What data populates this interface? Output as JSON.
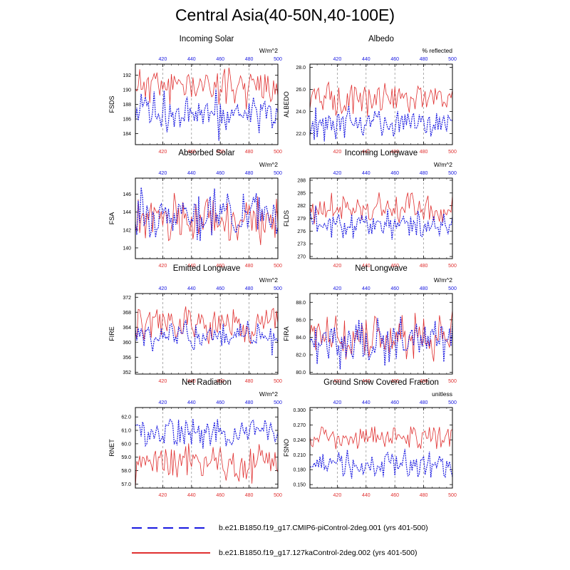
{
  "title": "Central Asia(40-50N,40-100E)",
  "colors": {
    "control": "#e03030",
    "cmip6": "#1818e0",
    "grid": "#8a8a8a"
  },
  "legend": [
    {
      "label": "b.e21.B1850.f19_g17.CMIP6-piControl-2deg.001 (yrs 401-500)",
      "color": "#1818e0",
      "style": "dashed"
    },
    {
      "label": "b.e21.B1850.f19_g17.127kaControl-2deg.002 (yrs 401-500)",
      "color": "#e03030",
      "style": "solid"
    }
  ],
  "chart_data": [
    {
      "type": "line",
      "title": "Incoming Solar",
      "ylabel": "FSDS",
      "units": "W/m^2",
      "xlim": [
        401,
        500
      ],
      "ylim": [
        182.5,
        193.5
      ],
      "yticks": [
        "184",
        "186",
        "188",
        "190",
        "192"
      ],
      "xticks": [
        420,
        440,
        460,
        480,
        500
      ],
      "series": [
        {
          "name": "127kaControl",
          "mean": 190.6,
          "amp": 1.1,
          "seed": 11
        },
        {
          "name": "CMIP6-piControl",
          "mean": 186.9,
          "amp": 1.3,
          "seed": 12
        }
      ]
    },
    {
      "type": "line",
      "title": "Albedo",
      "ylabel": "ALBEDO",
      "units": "% reflected",
      "xlim": [
        401,
        500
      ],
      "ylim": [
        21.0,
        28.3
      ],
      "yticks": [
        "22.0",
        "24.0",
        "26.0",
        "28.0"
      ],
      "xticks": [
        420,
        440,
        460,
        480,
        500
      ],
      "series": [
        {
          "name": "127kaControl",
          "mean": 25.2,
          "amp": 0.6,
          "seed": 21
        },
        {
          "name": "CMIP6-piControl",
          "mean": 23.0,
          "amp": 0.6,
          "seed": 22
        }
      ]
    },
    {
      "type": "line",
      "title": "Absorbed Solar",
      "ylabel": "FSA",
      "units": "W/m^2",
      "xlim": [
        401,
        500
      ],
      "ylim": [
        138.8,
        147.8
      ],
      "yticks": [
        "140",
        "142",
        "144",
        "146"
      ],
      "xticks": [
        420,
        440,
        460,
        480,
        500
      ],
      "series": [
        {
          "name": "127kaControl",
          "mean": 143.2,
          "amp": 1.1,
          "seed": 31
        },
        {
          "name": "CMIP6-piControl",
          "mean": 143.9,
          "amp": 1.1,
          "seed": 32
        }
      ]
    },
    {
      "type": "line",
      "title": "Incoming Longwave",
      "ylabel": "FLDS",
      "units": "W/m^2",
      "xlim": [
        401,
        500
      ],
      "ylim": [
        269.5,
        288.5
      ],
      "yticks": [
        "270",
        "273",
        "276",
        "279",
        "282",
        "285",
        "288"
      ],
      "xticks": [
        420,
        440,
        460,
        480,
        500
      ],
      "series": [
        {
          "name": "127kaControl",
          "mean": 281.0,
          "amp": 1.7,
          "seed": 41
        },
        {
          "name": "CMIP6-piControl",
          "mean": 277.6,
          "amp": 1.5,
          "seed": 42
        }
      ]
    },
    {
      "type": "line",
      "title": "Emitted Longwave",
      "ylabel": "FIRE",
      "units": "W/m^2",
      "xlim": [
        401,
        500
      ],
      "ylim": [
        351.5,
        373
      ],
      "yticks": [
        "352",
        "356",
        "360",
        "364",
        "368",
        "372"
      ],
      "xticks": [
        420,
        440,
        460,
        480,
        500
      ],
      "series": [
        {
          "name": "127kaControl",
          "mean": 364.6,
          "amp": 2.2,
          "seed": 51
        },
        {
          "name": "CMIP6-piControl",
          "mean": 361.5,
          "amp": 2.0,
          "seed": 52
        }
      ]
    },
    {
      "type": "line",
      "title": "Net Longwave",
      "ylabel": "FIRA",
      "units": "W/m^2",
      "xlim": [
        401,
        500
      ],
      "ylim": [
        79.8,
        89.0
      ],
      "yticks": [
        "80.0",
        "82.0",
        "84.0",
        "86.0",
        "88.0"
      ],
      "xticks": [
        420,
        440,
        460,
        480,
        500
      ],
      "series": [
        {
          "name": "127kaControl",
          "mean": 83.8,
          "amp": 1.2,
          "seed": 61
        },
        {
          "name": "CMIP6-piControl",
          "mean": 83.5,
          "amp": 1.1,
          "seed": 62
        }
      ]
    },
    {
      "type": "line",
      "title": "Net Radiation",
      "ylabel": "RNET",
      "units": "W/m^2",
      "xlim": [
        401,
        500
      ],
      "ylim": [
        56.7,
        62.7
      ],
      "yticks": [
        "57.0",
        "58.0",
        "59.0",
        "60.0",
        "61.0",
        "62.0"
      ],
      "xticks": [
        420,
        440,
        460,
        480,
        500
      ],
      "series": [
        {
          "name": "127kaControl",
          "mean": 58.7,
          "amp": 0.65,
          "seed": 71
        },
        {
          "name": "CMIP6-piControl",
          "mean": 60.8,
          "amp": 0.55,
          "seed": 72
        }
      ]
    },
    {
      "type": "line",
      "title": "Ground Snow Covered Fraction",
      "ylabel": "FSNO",
      "units": "unitless",
      "xlim": [
        401,
        500
      ],
      "ylim": [
        0.143,
        0.305
      ],
      "yticks": [
        "0.150",
        "0.180",
        "0.210",
        "0.240",
        "0.270",
        "0.300"
      ],
      "xticks": [
        420,
        440,
        460,
        480,
        500
      ],
      "series": [
        {
          "name": "127kaControl",
          "mean": 0.245,
          "amp": 0.012,
          "seed": 81
        },
        {
          "name": "CMIP6-piControl",
          "mean": 0.188,
          "amp": 0.013,
          "seed": 82
        }
      ]
    }
  ]
}
